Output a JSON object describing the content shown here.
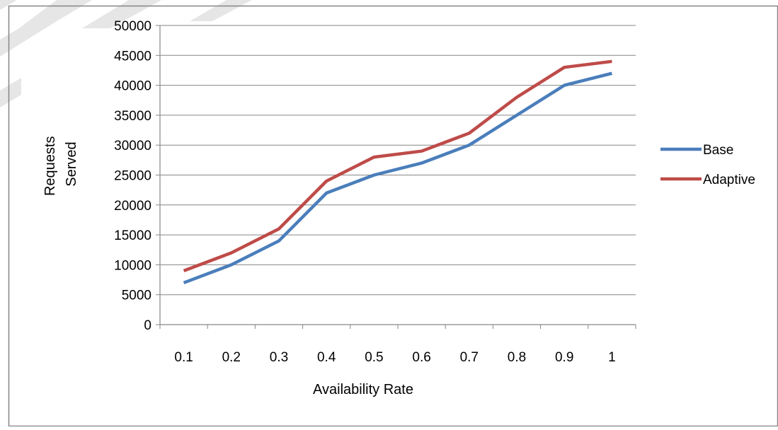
{
  "chart_data": {
    "type": "line",
    "categories": [
      "0.1",
      "0.2",
      "0.3",
      "0.4",
      "0.5",
      "0.6",
      "0.7",
      "0.8",
      "0.9",
      "1"
    ],
    "series": [
      {
        "name": "Base",
        "color": "#4a7ebb",
        "values": [
          7000,
          10000,
          14000,
          22000,
          25000,
          27000,
          30000,
          35000,
          40000,
          42000
        ]
      },
      {
        "name": "Adaptive",
        "color": "#be4b48",
        "values": [
          9000,
          12000,
          16000,
          24000,
          28000,
          29000,
          32000,
          38000,
          43000,
          44000
        ]
      }
    ],
    "xlabel": "Availability Rate",
    "ylabel_lines": [
      "Requests",
      "Served"
    ],
    "ylim": [
      0,
      50000
    ],
    "yticks": [
      0,
      5000,
      10000,
      15000,
      20000,
      25000,
      30000,
      35000,
      40000,
      45000,
      50000
    ],
    "grid": "horizontal",
    "legend_position": "right",
    "colors": {
      "gridline": "#868686",
      "axis": "#868686",
      "frame": "#868686",
      "decor_stripe": "#e6e6e6"
    }
  }
}
